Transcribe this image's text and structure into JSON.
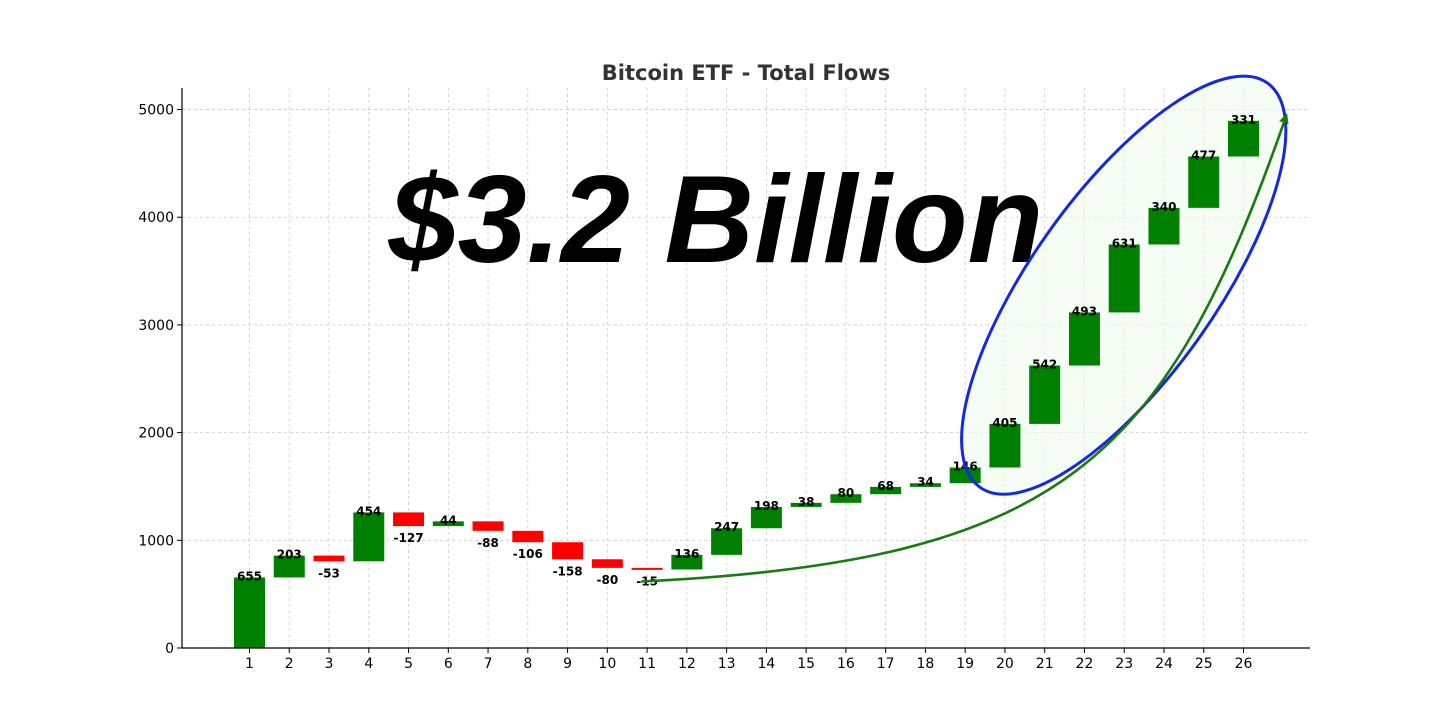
{
  "chart_data": {
    "type": "bar",
    "subtype": "waterfall",
    "title": "Bitcoin ETF - Total Flows",
    "xlabel": "",
    "ylabel": "",
    "categories": [
      "1",
      "2",
      "3",
      "4",
      "5",
      "6",
      "7",
      "8",
      "9",
      "10",
      "11",
      "12",
      "13",
      "14",
      "15",
      "16",
      "17",
      "18",
      "19",
      "20",
      "21",
      "22",
      "23",
      "24",
      "25",
      "26"
    ],
    "values": [
      655,
      203,
      -53,
      454,
      -127,
      44,
      -88,
      -106,
      -158,
      -80,
      -15,
      136,
      247,
      198,
      38,
      80,
      68,
      34,
      146,
      405,
      542,
      493,
      631,
      340,
      477,
      331
    ],
    "labels": [
      "655",
      "203",
      "-53",
      "454",
      "-127",
      "44",
      "-88",
      "-106",
      "-158",
      "-80",
      "-15",
      "136",
      "247",
      "198",
      "38",
      "80",
      "68",
      "34",
      "146",
      "405",
      "542",
      "493",
      "631",
      "340",
      "477",
      "331"
    ],
    "ylim": [
      0,
      5200
    ],
    "yticks": [
      0,
      1000,
      2000,
      3000,
      4000,
      5000
    ],
    "grid": true,
    "positive_color": "#008000",
    "negative_color": "#ff0000",
    "annotations": {
      "headline": "$3.2 Billion",
      "ellipse_color": "#1428e0",
      "arrow_color": "#1a7a12",
      "highlight_range": [
        "20",
        "26"
      ]
    }
  }
}
